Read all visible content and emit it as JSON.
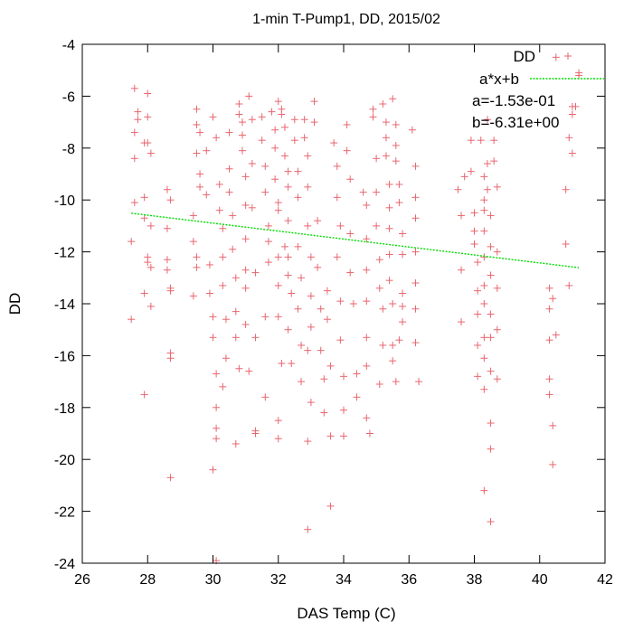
{
  "chart_data": {
    "type": "scatter",
    "title": "1-min T-Pump1, DD, 2015/02",
    "xlabel": "DAS Temp (C)",
    "ylabel": "DD",
    "xlim": [
      26,
      42
    ],
    "ylim": [
      -24,
      -4
    ],
    "xticks": [
      "26",
      "28",
      "30",
      "32",
      "34",
      "36",
      "38",
      "40",
      "42"
    ],
    "yticks": [
      "-4",
      "-6",
      "-8",
      "-10",
      "-12",
      "-14",
      "-16",
      "-18",
      "-20",
      "-22",
      "-24"
    ],
    "grid": false,
    "legend_position": "top-right",
    "colors": {
      "points": "#e8666f",
      "fit": "#00dd00",
      "axis": "#000000"
    },
    "series": [
      {
        "name": "DD",
        "marker": "plus",
        "points": [
          [
            27.5,
            -14.6
          ],
          [
            27.5,
            -11.6
          ],
          [
            27.6,
            -10.1
          ],
          [
            27.6,
            -8.4
          ],
          [
            27.6,
            -7.4
          ],
          [
            27.7,
            -6.9
          ],
          [
            27.7,
            -6.6
          ],
          [
            27.6,
            -5.7
          ],
          [
            27.9,
            -10.7
          ],
          [
            27.9,
            -9.9
          ],
          [
            27.9,
            -13.6
          ],
          [
            28.0,
            -12.2
          ],
          [
            28.0,
            -12.4
          ],
          [
            27.9,
            -17.5
          ],
          [
            28.0,
            -5.9
          ],
          [
            28.0,
            -6.8
          ],
          [
            28.0,
            -7.8
          ],
          [
            27.9,
            -7.8
          ],
          [
            28.1,
            -8.2
          ],
          [
            28.1,
            -11.0
          ],
          [
            28.1,
            -12.6
          ],
          [
            28.1,
            -14.1
          ],
          [
            28.6,
            -9.6
          ],
          [
            28.7,
            -10.0
          ],
          [
            28.6,
            -11.1
          ],
          [
            28.6,
            -12.3
          ],
          [
            28.6,
            -12.7
          ],
          [
            28.7,
            -13.5
          ],
          [
            28.7,
            -13.4
          ],
          [
            28.7,
            -15.9
          ],
          [
            28.7,
            -16.1
          ],
          [
            28.7,
            -20.7
          ],
          [
            29.4,
            -10.6
          ],
          [
            29.4,
            -11.6
          ],
          [
            29.5,
            -12.2
          ],
          [
            29.5,
            -12.6
          ],
          [
            29.4,
            -13.7
          ],
          [
            29.5,
            -6.5
          ],
          [
            29.5,
            -7.1
          ],
          [
            29.6,
            -7.4
          ],
          [
            29.5,
            -8.2
          ],
          [
            29.6,
            -9.0
          ],
          [
            29.6,
            -9.5
          ],
          [
            29.8,
            -8.1
          ],
          [
            29.8,
            -9.8
          ],
          [
            29.9,
            -12.5
          ],
          [
            29.9,
            -13.6
          ],
          [
            30.0,
            -14.5
          ],
          [
            30.0,
            -15.3
          ],
          [
            30.1,
            -16.7
          ],
          [
            30.1,
            -18.0
          ],
          [
            30.1,
            -18.8
          ],
          [
            30.1,
            -19.2
          ],
          [
            30.0,
            -20.4
          ],
          [
            30.1,
            -23.9
          ],
          [
            30.0,
            -6.8
          ],
          [
            30.1,
            -7.6
          ],
          [
            30.2,
            -9.4
          ],
          [
            30.2,
            -10.4
          ],
          [
            30.3,
            -11.1
          ],
          [
            30.3,
            -12.2
          ],
          [
            30.3,
            -13.3
          ],
          [
            30.4,
            -14.6
          ],
          [
            30.4,
            -16.1
          ],
          [
            30.3,
            -17.2
          ],
          [
            30.5,
            -7.4
          ],
          [
            30.5,
            -8.8
          ],
          [
            30.5,
            -9.7
          ],
          [
            30.6,
            -10.6
          ],
          [
            30.6,
            -11.9
          ],
          [
            30.7,
            -13.0
          ],
          [
            30.7,
            -14.3
          ],
          [
            30.7,
            -15.3
          ],
          [
            30.8,
            -16.5
          ],
          [
            30.7,
            -19.4
          ],
          [
            30.8,
            -6.3
          ],
          [
            30.8,
            -6.7
          ],
          [
            30.9,
            -7.0
          ],
          [
            30.9,
            -7.5
          ],
          [
            30.9,
            -8.1
          ],
          [
            31.0,
            -9.1
          ],
          [
            31.0,
            -10.2
          ],
          [
            31.0,
            -11.5
          ],
          [
            31.0,
            -12.7
          ],
          [
            31.0,
            -13.4
          ],
          [
            31.0,
            -14.8
          ],
          [
            31.1,
            -16.6
          ],
          [
            31.1,
            -6.0
          ],
          [
            31.2,
            -6.9
          ],
          [
            31.2,
            -8.6
          ],
          [
            31.2,
            -10.3
          ],
          [
            31.3,
            -12.8
          ],
          [
            31.3,
            -15.3
          ],
          [
            31.3,
            -18.9
          ],
          [
            31.3,
            -19.0
          ],
          [
            31.5,
            -6.8
          ],
          [
            31.5,
            -7.7
          ],
          [
            31.6,
            -8.7
          ],
          [
            31.6,
            -9.7
          ],
          [
            31.7,
            -11.0
          ],
          [
            31.7,
            -11.6
          ],
          [
            31.7,
            -12.4
          ],
          [
            31.6,
            -14.5
          ],
          [
            31.6,
            -17.6
          ],
          [
            31.8,
            -6.6
          ],
          [
            31.9,
            -7.3
          ],
          [
            31.9,
            -8.0
          ],
          [
            31.9,
            -9.2
          ],
          [
            32.0,
            -10.1
          ],
          [
            32.0,
            -10.4
          ],
          [
            32.0,
            -12.2
          ],
          [
            32.0,
            -13.3
          ],
          [
            32.0,
            -14.5
          ],
          [
            32.1,
            -16.3
          ],
          [
            32.0,
            -18.5
          ],
          [
            32.0,
            -19.2
          ],
          [
            32.0,
            -6.2
          ],
          [
            32.1,
            -6.5
          ],
          [
            32.1,
            -6.7
          ],
          [
            32.2,
            -7.2
          ],
          [
            32.2,
            -8.3
          ],
          [
            32.3,
            -8.9
          ],
          [
            32.3,
            -9.5
          ],
          [
            32.3,
            -10.8
          ],
          [
            32.2,
            -11.8
          ],
          [
            32.3,
            -12.2
          ],
          [
            32.3,
            -12.9
          ],
          [
            32.4,
            -13.6
          ],
          [
            32.3,
            -15.0
          ],
          [
            32.4,
            -16.3
          ],
          [
            32.5,
            -6.9
          ],
          [
            32.5,
            -7.7
          ],
          [
            32.6,
            -8.9
          ],
          [
            32.6,
            -9.9
          ],
          [
            32.6,
            -11.8
          ],
          [
            32.7,
            -13.0
          ],
          [
            32.6,
            -14.2
          ],
          [
            32.7,
            -15.6
          ],
          [
            32.7,
            -17.0
          ],
          [
            32.8,
            -6.9
          ],
          [
            32.8,
            -7.6
          ],
          [
            32.9,
            -8.3
          ],
          [
            32.9,
            -9.5
          ],
          [
            32.9,
            -11.0
          ],
          [
            33.0,
            -12.2
          ],
          [
            33.0,
            -13.7
          ],
          [
            33.0,
            -14.9
          ],
          [
            32.9,
            -15.8
          ],
          [
            33.0,
            -17.8
          ],
          [
            32.9,
            -19.3
          ],
          [
            32.9,
            -22.7
          ],
          [
            33.1,
            -6.2
          ],
          [
            33.1,
            -7.0
          ],
          [
            33.2,
            -10.8
          ],
          [
            33.2,
            -12.6
          ],
          [
            33.3,
            -14.2
          ],
          [
            33.3,
            -15.8
          ],
          [
            33.4,
            -16.9
          ],
          [
            33.4,
            -18.2
          ],
          [
            33.5,
            -13.5
          ],
          [
            33.5,
            -14.6
          ],
          [
            33.6,
            -16.4
          ],
          [
            33.6,
            -19.1
          ],
          [
            33.6,
            -21.8
          ],
          [
            33.7,
            -7.8
          ],
          [
            33.8,
            -8.7
          ],
          [
            33.8,
            -9.9
          ],
          [
            33.9,
            -11.0
          ],
          [
            33.8,
            -12.2
          ],
          [
            33.9,
            -13.9
          ],
          [
            33.9,
            -15.4
          ],
          [
            34.0,
            -16.8
          ],
          [
            34.0,
            -18.1
          ],
          [
            34.0,
            -19.1
          ],
          [
            34.1,
            -7.1
          ],
          [
            34.1,
            -8.1
          ],
          [
            34.2,
            -9.2
          ],
          [
            34.2,
            -11.3
          ],
          [
            34.2,
            -12.8
          ],
          [
            34.3,
            -14.0
          ],
          [
            34.4,
            -16.7
          ],
          [
            34.4,
            -17.6
          ],
          [
            34.6,
            -9.7
          ],
          [
            34.7,
            -10.2
          ],
          [
            34.7,
            -11.5
          ],
          [
            34.7,
            -12.7
          ],
          [
            34.7,
            -13.9
          ],
          [
            34.7,
            -15.3
          ],
          [
            34.7,
            -16.4
          ],
          [
            34.7,
            -18.4
          ],
          [
            34.8,
            -19.0
          ],
          [
            34.9,
            -6.5
          ],
          [
            34.9,
            -6.8
          ],
          [
            35.0,
            -8.4
          ],
          [
            35.0,
            -9.7
          ],
          [
            35.0,
            -11.0
          ],
          [
            35.1,
            -12.3
          ],
          [
            35.1,
            -13.4
          ],
          [
            35.2,
            -14.2
          ],
          [
            35.2,
            -15.6
          ],
          [
            35.1,
            -17.1
          ],
          [
            35.2,
            -6.3
          ],
          [
            35.3,
            -7.0
          ],
          [
            35.3,
            -7.6
          ],
          [
            35.3,
            -8.3
          ],
          [
            35.4,
            -9.4
          ],
          [
            35.4,
            -10.3
          ],
          [
            35.4,
            -11.1
          ],
          [
            35.4,
            -12.1
          ],
          [
            35.4,
            -13.1
          ],
          [
            35.5,
            -14.0
          ],
          [
            35.5,
            -15.6
          ],
          [
            35.5,
            -16.2
          ],
          [
            35.5,
            -6.1
          ],
          [
            35.6,
            -7.1
          ],
          [
            35.6,
            -7.9
          ],
          [
            35.6,
            -8.5
          ],
          [
            35.7,
            -9.4
          ],
          [
            35.7,
            -10.1
          ],
          [
            35.8,
            -11.3
          ],
          [
            35.8,
            -12.1
          ],
          [
            35.8,
            -13.6
          ],
          [
            35.8,
            -14.1
          ],
          [
            35.8,
            -14.7
          ],
          [
            35.7,
            -15.4
          ],
          [
            35.6,
            -17.0
          ],
          [
            36.1,
            -7.3
          ],
          [
            36.2,
            -8.7
          ],
          [
            36.2,
            -9.9
          ],
          [
            36.2,
            -10.7
          ],
          [
            36.2,
            -12.0
          ],
          [
            36.2,
            -13.2
          ],
          [
            36.2,
            -14.2
          ],
          [
            36.2,
            -15.5
          ],
          [
            36.3,
            -17.0
          ],
          [
            37.5,
            -9.6
          ],
          [
            37.6,
            -10.6
          ],
          [
            37.6,
            -12.7
          ],
          [
            37.6,
            -14.7
          ],
          [
            37.7,
            -9.1
          ],
          [
            37.9,
            -7.7
          ],
          [
            37.9,
            -8.9
          ],
          [
            38.0,
            -10.5
          ],
          [
            38.0,
            -11.2
          ],
          [
            38.0,
            -11.7
          ],
          [
            38.1,
            -12.4
          ],
          [
            38.1,
            -13.5
          ],
          [
            38.1,
            -14.4
          ],
          [
            38.1,
            -15.6
          ],
          [
            38.1,
            -16.8
          ],
          [
            38.2,
            -7.7
          ],
          [
            38.3,
            -9.1
          ],
          [
            38.3,
            -10.0
          ],
          [
            38.3,
            -10.4
          ],
          [
            38.3,
            -11.2
          ],
          [
            38.3,
            -12.2
          ],
          [
            38.3,
            -13.3
          ],
          [
            38.3,
            -14.0
          ],
          [
            38.3,
            -15.3
          ],
          [
            38.3,
            -16.1
          ],
          [
            38.3,
            -17.3
          ],
          [
            38.3,
            -21.2
          ],
          [
            38.4,
            -6.9
          ],
          [
            38.4,
            -8.6
          ],
          [
            38.4,
            -9.6
          ],
          [
            38.5,
            -10.6
          ],
          [
            38.5,
            -11.8
          ],
          [
            38.5,
            -12.9
          ],
          [
            38.5,
            -14.4
          ],
          [
            38.5,
            -15.3
          ],
          [
            38.5,
            -16.6
          ],
          [
            38.5,
            -18.6
          ],
          [
            38.5,
            -19.6
          ],
          [
            38.5,
            -22.4
          ],
          [
            38.6,
            -7.7
          ],
          [
            38.6,
            -8.5
          ],
          [
            38.7,
            -9.5
          ],
          [
            38.7,
            -12.0
          ],
          [
            38.7,
            -13.4
          ],
          [
            38.7,
            -15.0
          ],
          [
            38.7,
            -16.9
          ],
          [
            40.3,
            -13.4
          ],
          [
            40.3,
            -14.2
          ],
          [
            40.3,
            -15.4
          ],
          [
            40.3,
            -16.9
          ],
          [
            40.3,
            -17.5
          ],
          [
            40.4,
            -18.7
          ],
          [
            40.4,
            -20.2
          ],
          [
            40.4,
            -13.8
          ],
          [
            40.5,
            -15.2
          ],
          [
            40.5,
            -4.5
          ],
          [
            40.8,
            -9.6
          ],
          [
            40.8,
            -11.7
          ],
          [
            40.9,
            -13.3
          ],
          [
            40.9,
            -7.6
          ],
          [
            41.0,
            -8.2
          ],
          [
            41.0,
            -6.7
          ],
          [
            41.0,
            -6.4
          ],
          [
            41.1,
            -6.4
          ],
          [
            41.2,
            -5.2
          ],
          [
            41.2,
            -5.1
          ]
        ]
      },
      {
        "name": "a*x+b",
        "type": "line",
        "x": [
          27.5,
          41.2
        ],
        "y": [
          -10.51,
          -12.61
        ]
      }
    ],
    "legend": {
      "entries": [
        "DD",
        "a*x+b"
      ],
      "annotations": [
        "a=-1.53e-01",
        "b=-6.31e+00"
      ]
    }
  }
}
